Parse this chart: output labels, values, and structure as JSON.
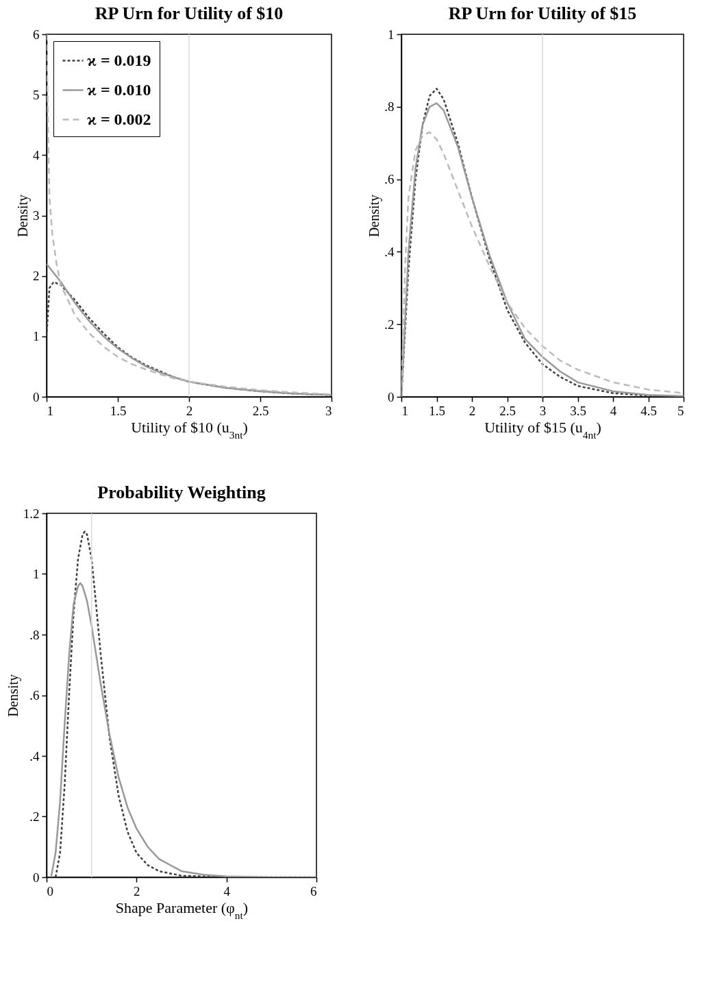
{
  "chart_data": [
    {
      "type": "line",
      "title": "RP Urn for Utility of $10",
      "xlabel": "Utility of $10 (u$_{3nt}$)",
      "ylabel": "Density",
      "xlim": [
        1,
        3
      ],
      "xticks": [
        1,
        1.5,
        2,
        2.5,
        3
      ],
      "ylim": [
        0,
        6
      ],
      "yticks": [
        0,
        1,
        2,
        3,
        4,
        5,
        6
      ],
      "grid": false,
      "legend": "top left",
      "marker": "none",
      "ref_lines": [
        {
          "axis": "x",
          "value": 2,
          "color": "#d9d9d9"
        }
      ],
      "series": [
        {
          "name": "ϰ = 0.019",
          "color": "#404040",
          "line_style": "dotted",
          "x": [
            1,
            1.02,
            1.05,
            1.1,
            1.2,
            1.3,
            1.4,
            1.5,
            1.6,
            1.7,
            1.8,
            1.9,
            2,
            2.25,
            2.5,
            2.75,
            3
          ],
          "values": [
            1.0,
            1.8,
            1.9,
            1.85,
            1.6,
            1.3,
            1.05,
            0.82,
            0.65,
            0.52,
            0.42,
            0.32,
            0.25,
            0.15,
            0.09,
            0.05,
            0.03
          ]
        },
        {
          "name": "ϰ = 0.010",
          "color": "#999999",
          "line_style": "solid",
          "x": [
            1,
            1.1,
            1.2,
            1.3,
            1.4,
            1.5,
            1.6,
            1.7,
            1.8,
            1.9,
            2,
            2.25,
            2.5,
            2.75,
            3
          ],
          "values": [
            2.2,
            1.9,
            1.55,
            1.25,
            1.0,
            0.8,
            0.64,
            0.5,
            0.4,
            0.32,
            0.25,
            0.15,
            0.09,
            0.05,
            0.03
          ]
        },
        {
          "name": "ϰ = 0.002",
          "color": "#bbbbbb",
          "line_style": "dashed",
          "x": [
            1,
            1.01,
            1.02,
            1.04,
            1.07,
            1.1,
            1.2,
            1.3,
            1.4,
            1.5,
            1.6,
            1.7,
            1.8,
            1.9,
            2,
            2.25,
            2.5,
            2.75,
            3
          ],
          "values": [
            6,
            4.5,
            3.3,
            2.7,
            2.2,
            1.85,
            1.35,
            1.05,
            0.83,
            0.66,
            0.54,
            0.45,
            0.37,
            0.3,
            0.25,
            0.17,
            0.11,
            0.07,
            0.04
          ]
        }
      ]
    },
    {
      "type": "line",
      "title": "RP Urn for Utility of $15",
      "xlabel": "Utility of $15 (u$_{4nt}$)",
      "ylabel": "Density",
      "xlim": [
        1,
        5
      ],
      "xticks": [
        1,
        1.5,
        2,
        2.5,
        3,
        3.5,
        4,
        4.5,
        5
      ],
      "ylim": [
        0,
        1
      ],
      "yticks": [
        0,
        {
          "value": 0.2,
          "label": ".2"
        },
        {
          "value": 0.4,
          "label": ".4"
        },
        {
          "value": 0.6,
          "label": ".6"
        },
        {
          "value": 0.8,
          "label": ".8"
        },
        1
      ],
      "grid": false,
      "marker": "none",
      "ref_lines": [
        {
          "axis": "x",
          "value": 3,
          "color": "#d9d9d9"
        }
      ],
      "series": [
        {
          "color": "#404040",
          "line_style": "dotted",
          "x": [
            1,
            1.1,
            1.2,
            1.3,
            1.4,
            1.5,
            1.6,
            1.8,
            2,
            2.25,
            2.5,
            2.75,
            3,
            3.25,
            3.5,
            4,
            4.5,
            5
          ],
          "values": [
            0,
            0.35,
            0.6,
            0.75,
            0.83,
            0.85,
            0.82,
            0.7,
            0.55,
            0.38,
            0.24,
            0.15,
            0.09,
            0.055,
            0.03,
            0.01,
            0.003,
            0
          ]
        },
        {
          "color": "#999999",
          "line_style": "solid",
          "x": [
            1,
            1.1,
            1.2,
            1.3,
            1.4,
            1.5,
            1.6,
            1.8,
            2,
            2.25,
            2.5,
            2.75,
            3,
            3.25,
            3.5,
            4,
            4.5,
            5
          ],
          "values": [
            0,
            0.4,
            0.63,
            0.75,
            0.8,
            0.81,
            0.79,
            0.69,
            0.55,
            0.39,
            0.26,
            0.16,
            0.11,
            0.07,
            0.04,
            0.015,
            0.005,
            0.002
          ]
        },
        {
          "color": "#bbbbbb",
          "line_style": "dashed",
          "x": [
            1,
            1.05,
            1.1,
            1.2,
            1.3,
            1.4,
            1.5,
            1.6,
            1.8,
            2,
            2.25,
            2.5,
            2.75,
            3,
            3.25,
            3.5,
            4,
            4.5,
            5
          ],
          "values": [
            0,
            0.35,
            0.55,
            0.68,
            0.72,
            0.73,
            0.71,
            0.67,
            0.57,
            0.47,
            0.36,
            0.26,
            0.19,
            0.14,
            0.1,
            0.075,
            0.04,
            0.02,
            0.01
          ]
        }
      ]
    },
    {
      "type": "line",
      "title": "Probability Weighting",
      "xlabel": "Shape Parameter (φ$_{nt}$)",
      "ylabel": "Density",
      "xlim": [
        0,
        6
      ],
      "xticks": [
        0,
        2,
        4,
        6
      ],
      "ylim": [
        0,
        1.2
      ],
      "yticks": [
        0,
        {
          "value": 0.2,
          "label": ".2"
        },
        {
          "value": 0.4,
          "label": ".4"
        },
        {
          "value": 0.6,
          "label": ".6"
        },
        {
          "value": 0.8,
          "label": ".8"
        },
        1,
        1.2
      ],
      "grid": false,
      "marker": "none",
      "ref_lines": [
        {
          "axis": "x",
          "value": 1,
          "color": "#d9d9d9"
        }
      ],
      "series": [
        {
          "color": "#404040",
          "line_style": "dotted",
          "x": [
            0.2,
            0.3,
            0.4,
            0.5,
            0.6,
            0.7,
            0.8,
            0.85,
            0.9,
            1,
            1.1,
            1.2,
            1.4,
            1.6,
            1.8,
            2,
            2.25,
            2.5,
            3,
            4,
            6
          ],
          "values": [
            0,
            0.08,
            0.3,
            0.6,
            0.87,
            1.05,
            1.13,
            1.14,
            1.13,
            1.05,
            0.9,
            0.74,
            0.46,
            0.27,
            0.15,
            0.08,
            0.04,
            0.02,
            0.005,
            0,
            0
          ]
        },
        {
          "color": "#999999",
          "line_style": "solid",
          "x": [
            0.1,
            0.2,
            0.3,
            0.4,
            0.5,
            0.6,
            0.7,
            0.75,
            0.8,
            0.9,
            1,
            1.2,
            1.4,
            1.6,
            1.8,
            2,
            2.25,
            2.5,
            3,
            3.5,
            4,
            5,
            6
          ],
          "values": [
            0,
            0.08,
            0.25,
            0.5,
            0.73,
            0.9,
            0.96,
            0.97,
            0.96,
            0.91,
            0.83,
            0.64,
            0.47,
            0.33,
            0.23,
            0.16,
            0.1,
            0.06,
            0.02,
            0.008,
            0.003,
            0,
            0
          ]
        }
      ]
    }
  ]
}
